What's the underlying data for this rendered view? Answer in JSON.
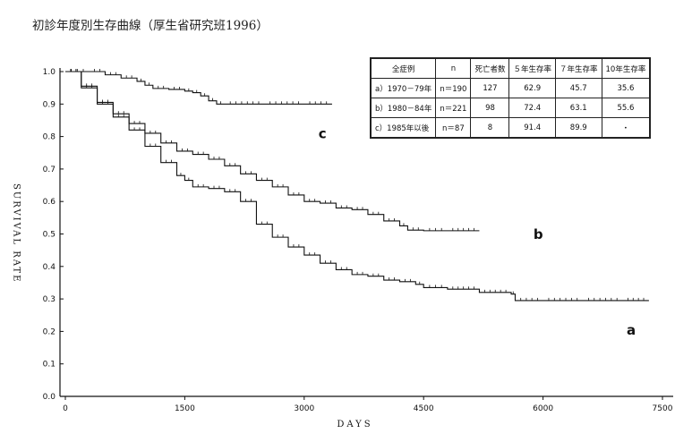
{
  "page_title": "初診年度別生存曲線（厚生省研究班1996）",
  "chart_data": {
    "type": "line",
    "title": "初診年度別生存曲線（厚生省研究班1996）",
    "xlabel": "DAYS",
    "ylabel": "SURVIVAL RATE",
    "xlim": [
      0,
      7500
    ],
    "ylim": [
      0,
      1.0
    ],
    "x_ticks": [
      "0",
      "1500",
      "3000",
      "4500",
      "6000",
      "7500"
    ],
    "x_tick_values": [
      0,
      1500,
      3000,
      4500,
      6000,
      7500
    ],
    "y_ticks": [
      "0.0",
      "0.1",
      "0.2",
      "0.3",
      "0.4",
      "0.5",
      "0.6",
      "0.7",
      "0.8",
      "0.9",
      "1.0"
    ],
    "y_tick_values": [
      0,
      0.1,
      0.2,
      0.3,
      0.4,
      0.5,
      0.6,
      0.7,
      0.8,
      0.9,
      1.0
    ],
    "grid": false,
    "series": [
      {
        "name": "a",
        "label_position": [
          7050,
          0.19
        ],
        "points": [
          [
            0,
            1.0
          ],
          [
            200,
            0.95
          ],
          [
            400,
            0.9
          ],
          [
            600,
            0.86
          ],
          [
            800,
            0.82
          ],
          [
            1000,
            0.77
          ],
          [
            1200,
            0.72
          ],
          [
            1400,
            0.68
          ],
          [
            1500,
            0.665
          ],
          [
            1600,
            0.645
          ],
          [
            1800,
            0.64
          ],
          [
            2000,
            0.63
          ],
          [
            2200,
            0.6
          ],
          [
            2400,
            0.53
          ],
          [
            2600,
            0.49
          ],
          [
            2800,
            0.46
          ],
          [
            3000,
            0.435
          ],
          [
            3200,
            0.41
          ],
          [
            3400,
            0.39
          ],
          [
            3600,
            0.375
          ],
          [
            3800,
            0.37
          ],
          [
            4000,
            0.358
          ],
          [
            4200,
            0.353
          ],
          [
            4400,
            0.345
          ],
          [
            4500,
            0.335
          ],
          [
            4800,
            0.33
          ],
          [
            5200,
            0.32
          ],
          [
            5600,
            0.315
          ],
          [
            5650,
            0.295
          ],
          [
            6000,
            0.295
          ],
          [
            6500,
            0.295
          ],
          [
            7000,
            0.295
          ],
          [
            7330,
            0.295
          ]
        ]
      },
      {
        "name": "b",
        "label_position": [
          5880,
          0.485
        ],
        "points": [
          [
            0,
            1.0
          ],
          [
            200,
            0.955
          ],
          [
            400,
            0.905
          ],
          [
            600,
            0.87
          ],
          [
            800,
            0.84
          ],
          [
            1000,
            0.81
          ],
          [
            1200,
            0.78
          ],
          [
            1400,
            0.755
          ],
          [
            1600,
            0.745
          ],
          [
            1800,
            0.73
          ],
          [
            2000,
            0.71
          ],
          [
            2200,
            0.685
          ],
          [
            2400,
            0.665
          ],
          [
            2600,
            0.645
          ],
          [
            2800,
            0.62
          ],
          [
            3000,
            0.6
          ],
          [
            3200,
            0.595
          ],
          [
            3400,
            0.58
          ],
          [
            3600,
            0.575
          ],
          [
            3800,
            0.56
          ],
          [
            4000,
            0.54
          ],
          [
            4200,
            0.525
          ],
          [
            4300,
            0.512
          ],
          [
            4500,
            0.51
          ],
          [
            4800,
            0.51
          ],
          [
            5200,
            0.51
          ]
        ]
      },
      {
        "name": "c",
        "label_position": [
          3180,
          0.795
        ],
        "points": [
          [
            0,
            1.0
          ],
          [
            300,
            1.0
          ],
          [
            500,
            0.99
          ],
          [
            700,
            0.98
          ],
          [
            900,
            0.97
          ],
          [
            1000,
            0.958
          ],
          [
            1100,
            0.948
          ],
          [
            1300,
            0.945
          ],
          [
            1500,
            0.94
          ],
          [
            1600,
            0.935
          ],
          [
            1700,
            0.925
          ],
          [
            1800,
            0.91
          ],
          [
            1900,
            0.9
          ],
          [
            2000,
            0.9
          ],
          [
            2500,
            0.9
          ],
          [
            3000,
            0.9
          ],
          [
            3350,
            0.9
          ]
        ]
      }
    ]
  },
  "table": {
    "headers": [
      "全症例",
      "n",
      "死亡者数",
      "５年生存率",
      "７年生存率",
      "10年生存率"
    ],
    "rows": [
      {
        "group": "a）1970－79年",
        "n": "n＝190",
        "deaths": "127",
        "y5": "62.9",
        "y7": "45.7",
        "y10": "35.6"
      },
      {
        "group": "b）1980－84年",
        "n": "n＝221",
        "deaths": "98",
        "y5": "72.4",
        "y7": "63.1",
        "y10": "55.6"
      },
      {
        "group": "c）1985年以後",
        "n": "n＝87",
        "deaths": "8",
        "y5": "91.4",
        "y7": "89.9",
        "y10": "・"
      }
    ]
  }
}
